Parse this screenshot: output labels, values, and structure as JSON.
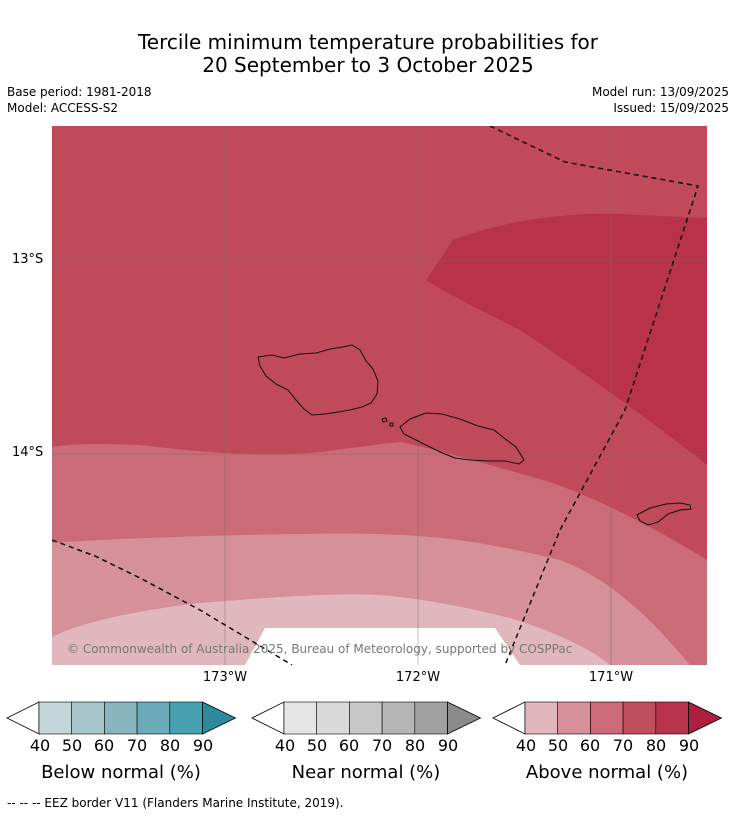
{
  "title": {
    "line1": "Tercile minimum temperature probabilities for",
    "line2": "20 September to 3 October 2025"
  },
  "meta": {
    "base_period": "Base period: 1981-2018",
    "model": "Model: ACCESS-S2",
    "model_run": "Model run: 13/09/2025",
    "issued": "Issued: 15/09/2025"
  },
  "map": {
    "lat_labels": [
      "13°S",
      "14°S"
    ],
    "lon_labels": [
      "173°W",
      "172°W",
      "171°W"
    ],
    "copyright": "© Commonwealth of Australia 2025, Bureau of Meteorology, supported by COSPPac"
  },
  "legend": {
    "ticks": [
      "40",
      "50",
      "60",
      "70",
      "80",
      "90"
    ],
    "below": {
      "title": "Below normal (%)",
      "colors": [
        "#c1d5db",
        "#a7c6cb",
        "#88b5c0",
        "#6aaab9",
        "#47a0b2",
        "#2b8a9e"
      ]
    },
    "near": {
      "title": "Near normal (%)",
      "colors": [
        "#e6e6e6",
        "#d9d9d9",
        "#c7c7c7",
        "#b5b5b5",
        "#a1a1a1",
        "#8a8a8a"
      ]
    },
    "above": {
      "title": "Above normal (%)",
      "colors": [
        "#e0b7bd",
        "#d5909a",
        "#cb6b77",
        "#c04f5d",
        "#b8334a",
        "#ac1f3e"
      ]
    }
  },
  "footnote": "--  --  -- EEZ border V11 (Flanders Marine Institute, 2019)."
}
